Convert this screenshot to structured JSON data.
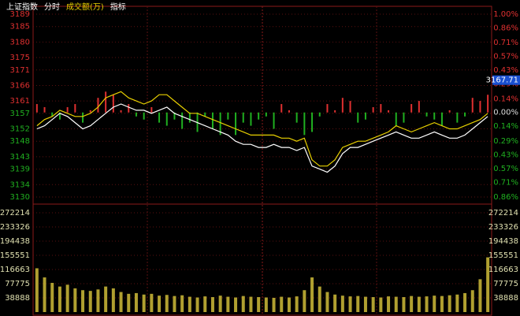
{
  "header": {
    "tabs": [
      {
        "text": "上证指数",
        "color": "#ffffff"
      },
      {
        "text": "分时",
        "color": "#ffffff"
      },
      {
        "text": "成交额(万)",
        "color": "#e8d000"
      },
      {
        "text": "指标",
        "color": "#ffffff"
      }
    ]
  },
  "chart_data": [
    {
      "type": "line",
      "ylim": [
        3130,
        3189
      ],
      "yticks": [
        3189,
        3185,
        3180,
        3175,
        3171,
        3166,
        3161,
        3157,
        3152,
        3148,
        3143,
        3139,
        3134,
        3130
      ],
      "y2lim": [
        -0.86,
        1.0
      ],
      "y2ticks": [
        {
          "value": 1.0,
          "label": "1.00%"
        },
        {
          "value": 0.86,
          "label": "0.86%"
        },
        {
          "value": 0.71,
          "label": "0.71%"
        },
        {
          "value": 0.57,
          "label": "0.57%"
        },
        {
          "value": 0.43,
          "label": "0.43%"
        },
        {
          "value": 0.29,
          "label": "0.29%"
        },
        {
          "value": 0.14,
          "label": "0.14%"
        },
        {
          "value": 0,
          "label": "0.00%"
        },
        {
          "value": -0.14,
          "label": "0.14%"
        },
        {
          "value": -0.29,
          "label": "0.29%"
        },
        {
          "value": -0.43,
          "label": "0.43%"
        },
        {
          "value": -0.57,
          "label": "0.57%"
        },
        {
          "value": -0.71,
          "label": "0.71%"
        },
        {
          "value": -0.86,
          "label": "0.86%"
        }
      ],
      "last_value": 3167.71,
      "grid": true,
      "bars": {
        "up_color": "#e03030",
        "down_color": "#20b020",
        "values": [
          3160,
          3159,
          3156,
          3155,
          3159,
          3160,
          3154,
          3158,
          3162,
          3164,
          3163,
          3158,
          3160,
          3156,
          3155,
          3159,
          3154,
          3153,
          3155,
          3152,
          3154,
          3151,
          3156,
          3152,
          3150,
          3155,
          3150,
          3154,
          3153,
          3155,
          3156,
          3152,
          3160,
          3158,
          3154,
          3150,
          3151,
          3156,
          3160,
          3158,
          3162,
          3161,
          3154,
          3155,
          3159,
          3160,
          3158,
          3153,
          3154,
          3160,
          3161,
          3156,
          3155,
          3153,
          3158,
          3154,
          3156,
          3162,
          3161,
          3163
        ]
      },
      "series": [
        {
          "color": "#ffffff",
          "values": [
            3152,
            3153,
            3155,
            3157,
            3156,
            3154,
            3152,
            3153,
            3155,
            3157,
            3159,
            3160,
            3159,
            3158,
            3158,
            3157,
            3158,
            3159,
            3157,
            3156,
            3155,
            3154,
            3153,
            3152,
            3151,
            3150,
            3148,
            3147,
            3147,
            3146,
            3146,
            3147,
            3146,
            3146,
            3145,
            3146,
            3140,
            3139,
            3138,
            3140,
            3144,
            3146,
            3146,
            3147,
            3148,
            3149,
            3150,
            3151,
            3150,
            3149,
            3149,
            3150,
            3151,
            3150,
            3149,
            3149,
            3150,
            3152,
            3154,
            3156
          ]
        },
        {
          "color": "#e8d000",
          "values": [
            3153,
            3155,
            3156,
            3158,
            3157,
            3156,
            3156,
            3157,
            3159,
            3162,
            3163,
            3164,
            3162,
            3161,
            3160,
            3161,
            3163,
            3163,
            3161,
            3159,
            3157,
            3157,
            3156,
            3155,
            3154,
            3153,
            3152,
            3151,
            3150,
            3150,
            3150,
            3150,
            3149,
            3149,
            3148,
            3149,
            3142,
            3140,
            3140,
            3142,
            3146,
            3147,
            3148,
            3148,
            3149,
            3150,
            3151,
            3153,
            3152,
            3151,
            3152,
            3153,
            3154,
            3153,
            3152,
            3152,
            3153,
            3154,
            3155,
            3157
          ]
        }
      ]
    },
    {
      "type": "bar",
      "color": "#b0a030",
      "ylim": [
        0,
        272214
      ],
      "yticks": [
        272214,
        233326,
        194438,
        155551,
        116663,
        77775,
        38888
      ],
      "grid": true,
      "values": [
        120000,
        95000,
        80000,
        70000,
        75000,
        65000,
        60000,
        58000,
        62000,
        70000,
        65000,
        55000,
        50000,
        52000,
        48000,
        50000,
        45000,
        47000,
        44000,
        46000,
        42000,
        40000,
        43000,
        41000,
        45000,
        42000,
        40000,
        44000,
        42000,
        41000,
        40000,
        39000,
        42000,
        40000,
        43000,
        60000,
        95000,
        70000,
        55000,
        48000,
        45000,
        43000,
        44000,
        42000,
        41000,
        40000,
        43000,
        42000,
        41000,
        44000,
        42000,
        43000,
        45000,
        44000,
        46000,
        48000,
        52000,
        60000,
        90000,
        150000
      ]
    }
  ]
}
